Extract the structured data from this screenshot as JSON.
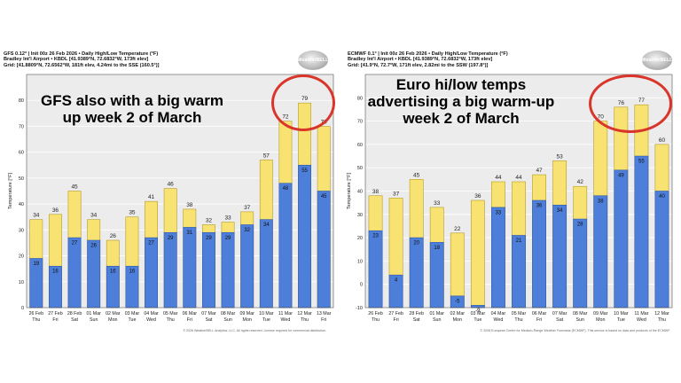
{
  "colors": {
    "high": "#f8e271",
    "low": "#4d7ed9",
    "grid_bg": "#ececec",
    "ring": "#d9352a"
  },
  "panels": {
    "gfs": {
      "header_line1": "GFS 0.12° | Init 00z 26 Feb 2026 • Daily High/Low Temperature (°F)",
      "header_line2": "Bradley Int'l Airport • KBDL [41.9389°N, 72.6832°W, 173ft elev]",
      "header_line3": "Grid: [41.8809°N, 72.6562°W, 181ft elev, 4.24mi to the SSE (160.5°)]",
      "logo_text": "WeatherBELL",
      "annotation": "GFS also with a big warm up week 2 of March",
      "footer": "© 2026 WeatherBELL Analytics, LLC. All rights reserved. License required for commercial distribution."
    },
    "ecmwf": {
      "header_line1": "ECMWF 0.1° | Init 00z 26 Feb 2026 • Daily High/Low Temperature (°F)",
      "header_line2": "Bradley Int'l Airport • KBDL [41.9389°N, 72.6832°W, 173ft elev]",
      "header_line3": "Grid: [41.9°N, 72.7°W, 171ft elev, 2.82mi to the SSW (197.8°)]",
      "logo_text": "WeatherBELL",
      "annotation": "Euro hi/low temps advertising a big warm-up week 2 of March",
      "footer": "© 2026 European Centre for Medium-Range Weather Forecasts (ECMWF). This service is based on data and products of the ECMWF."
    }
  },
  "chart_data": [
    {
      "type": "bar",
      "title": "GFS 0.12° Daily High/Low Temperature (°F)",
      "xlabel": "",
      "ylabel": "Temperature [°F]",
      "ylim": [
        0,
        90
      ],
      "yticks": [
        0,
        10,
        20,
        30,
        40,
        50,
        60,
        70,
        80
      ],
      "categories": [
        "26 Feb",
        "27 Feb",
        "28 Feb",
        "01 Mar",
        "02 Mar",
        "03 Mar",
        "04 Mar",
        "05 Mar",
        "06 Mar",
        "07 Mar",
        "08 Mar",
        "09 Mar",
        "10 Mar",
        "11 Mar",
        "12 Mar",
        "13 Mar"
      ],
      "day_labels": [
        "Thu",
        "Fri",
        "Sat",
        "Sun",
        "Mon",
        "Tue",
        "Wed",
        "Thu",
        "Fri",
        "Sat",
        "Sun",
        "Mon",
        "Tue",
        "Wed",
        "Thu",
        "Fri"
      ],
      "series": [
        {
          "name": "High",
          "values": [
            34,
            36,
            45,
            34,
            26,
            35,
            41,
            46,
            38,
            32,
            33,
            37,
            57,
            72,
            79,
            70
          ]
        },
        {
          "name": "Low",
          "values": [
            19,
            16,
            27,
            26,
            16,
            16,
            27,
            29,
            31,
            29,
            29,
            32,
            34,
            48,
            55,
            45
          ]
        }
      ]
    },
    {
      "type": "bar",
      "title": "ECMWF 0.1° Daily High/Low Temperature (°F)",
      "xlabel": "",
      "ylabel": "Temperature [°F]",
      "ylim": [
        -10,
        90
      ],
      "yticks": [
        -10,
        0,
        10,
        20,
        30,
        40,
        50,
        60,
        70,
        80
      ],
      "categories": [
        "26 Feb",
        "27 Feb",
        "28 Feb",
        "01 Mar",
        "02 Mar",
        "03 Mar",
        "04 Mar",
        "05 Mar",
        "06 Mar",
        "07 Mar",
        "08 Mar",
        "09 Mar",
        "10 Mar",
        "11 Mar",
        "12 Mar"
      ],
      "day_labels": [
        "Thu",
        "Fri",
        "Sat",
        "Sun",
        "Mon",
        "Tue",
        "Wed",
        "Thu",
        "Fri",
        "Sat",
        "Sun",
        "Mon",
        "Tue",
        "Wed",
        "Thu"
      ],
      "series": [
        {
          "name": "High",
          "values": [
            38,
            37,
            45,
            33,
            22,
            36,
            44,
            44,
            47,
            53,
            42,
            70,
            76,
            77,
            60
          ]
        },
        {
          "name": "Low",
          "values": [
            23,
            4,
            20,
            18,
            -5,
            -9,
            33,
            21,
            36,
            34,
            28,
            38,
            49,
            55,
            40
          ]
        }
      ]
    }
  ]
}
